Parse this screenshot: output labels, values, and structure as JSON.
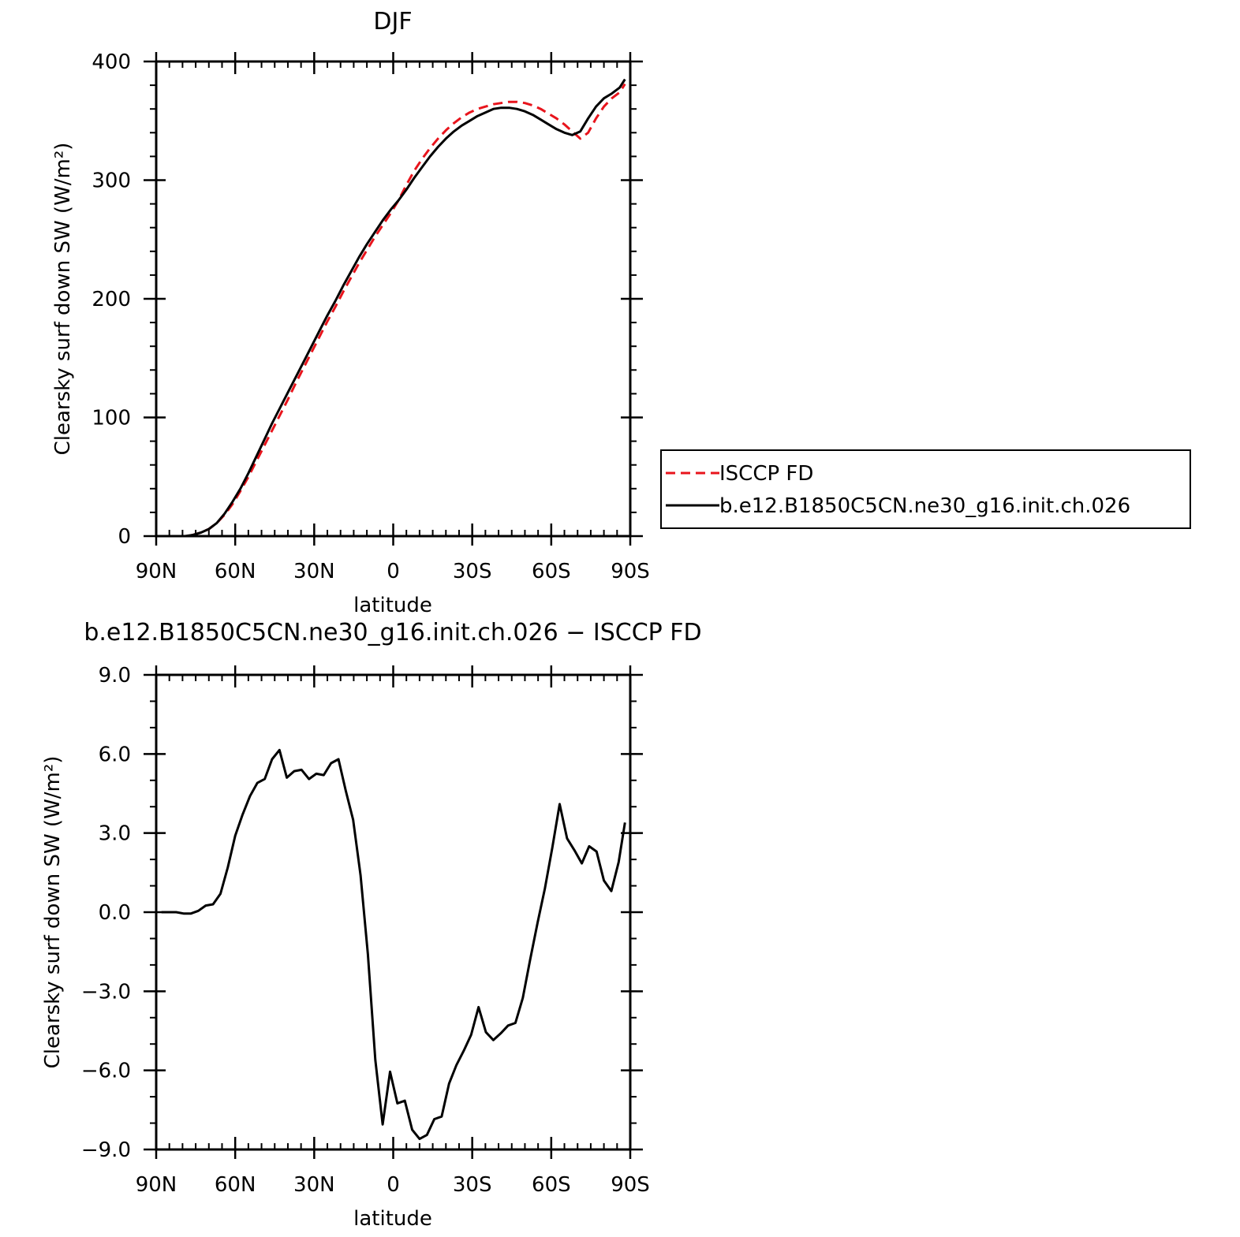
{
  "chart_data": [
    {
      "type": "line",
      "title": "DJF",
      "xlabel": "latitude",
      "ylabel": "Clearsky surf down SW (W/m²)",
      "xlim": [
        90,
        -90
      ],
      "ylim": [
        0,
        400
      ],
      "x_tick_values": [
        90,
        60,
        30,
        0,
        -30,
        -60,
        -90
      ],
      "x_tick_labels": [
        "90N",
        "60N",
        "30N",
        "0",
        "30S",
        "60S",
        "90S"
      ],
      "y_tick_values": [
        0,
        100,
        200,
        300,
        400
      ],
      "y_tick_labels": [
        "0",
        "100",
        "200",
        "300",
        "400"
      ],
      "legend_position": "right",
      "x": [
        88,
        85,
        82,
        79,
        76,
        73,
        70,
        67,
        64,
        61,
        58,
        55,
        52,
        49,
        46,
        43,
        40,
        37,
        34,
        31,
        28,
        25,
        22,
        19,
        16,
        13,
        10,
        7,
        4,
        1,
        -2,
        -5,
        -8,
        -11,
        -14,
        -17,
        -20,
        -23,
        -26,
        -29,
        -32,
        -35,
        -38,
        -41,
        -44,
        -47,
        -50,
        -53,
        -56,
        -59,
        -62,
        -65,
        -68,
        -71,
        -74,
        -77,
        -80,
        -83,
        -86,
        -88
      ],
      "series": [
        {
          "name": "ISCCP FD",
          "color": "#e8141c",
          "dash": "dashed",
          "values": [
            0,
            0,
            0,
            0,
            1,
            3,
            6,
            11,
            18,
            27,
            38,
            50,
            63,
            76,
            89,
            102,
            115,
            129,
            142,
            155,
            168,
            181,
            193,
            206,
            218,
            230,
            241,
            252,
            262,
            272,
            283,
            296,
            308,
            318,
            327,
            335,
            342,
            348,
            353,
            357,
            360,
            362,
            364,
            365,
            366,
            366,
            365,
            363,
            360,
            356,
            352,
            347,
            341,
            335,
            340,
            352,
            362,
            369,
            374,
            381
          ]
        },
        {
          "name": "b.e12.B1850C5CN.ne30_g16.init.ch.026",
          "color": "#000000",
          "dash": "solid",
          "values": [
            0,
            0,
            0,
            0,
            1,
            3,
            6,
            11,
            19,
            29,
            40,
            53,
            67,
            81,
            95,
            108,
            121,
            134,
            147,
            160,
            173,
            186,
            198,
            211,
            223,
            235,
            246,
            256,
            266,
            275,
            283,
            292,
            302,
            311,
            320,
            328,
            335,
            341,
            346,
            350,
            354,
            357,
            360,
            361,
            361,
            360,
            358,
            355,
            351,
            347,
            343,
            340,
            338,
            341,
            352,
            362,
            369,
            373,
            378,
            385
          ]
        }
      ]
    },
    {
      "type": "line",
      "title": "b.e12.B1850C5CN.ne30_g16.init.ch.026 − ISCCP FD",
      "xlabel": "latitude",
      "ylabel": "Clearsky surf down SW (W/m²)",
      "xlim": [
        90,
        -90
      ],
      "ylim": [
        -9,
        9
      ],
      "x_tick_values": [
        90,
        60,
        30,
        0,
        -30,
        -60,
        -90
      ],
      "x_tick_labels": [
        "90N",
        "60N",
        "30N",
        "0",
        "30S",
        "60S",
        "90S"
      ],
      "y_tick_values": [
        -9,
        -6,
        -3,
        0,
        3,
        6,
        9
      ],
      "y_tick_labels": [
        "−9.0",
        "−6.0",
        "−3.0",
        "0.0",
        "3.0",
        "6.0",
        "9.0"
      ],
      "x": [
        88,
        85.2,
        82.4,
        79.6,
        76.8,
        74,
        71.2,
        68.4,
        65.6,
        62.8,
        60,
        57.2,
        54.4,
        51.6,
        48.8,
        46,
        43.2,
        40.4,
        37.6,
        34.8,
        32,
        29.2,
        26.4,
        23.6,
        20.8,
        18,
        15.2,
        12.4,
        9.6,
        6.8,
        4,
        1.2,
        -1.6,
        -4.4,
        -7.2,
        -10,
        -12.8,
        -15.6,
        -18.4,
        -21.2,
        -24,
        -26.8,
        -29.6,
        -32.4,
        -35.2,
        -38,
        -40.8,
        -43.6,
        -46.4,
        -49.2,
        -52,
        -54.8,
        -57.6,
        -60.4,
        -63.2,
        -66,
        -68.8,
        -71.6,
        -74.4,
        -77.2,
        -80,
        -82.8,
        -85.6,
        -88
      ],
      "series": [
        {
          "name": "",
          "color": "#000000",
          "dash": "solid",
          "values": [
            0,
            0,
            0,
            -0.05,
            -0.05,
            0.05,
            0.25,
            0.3,
            0.7,
            1.7,
            2.9,
            3.7,
            4.4,
            4.9,
            5.05,
            5.8,
            6.15,
            5.1,
            5.35,
            5.4,
            5.05,
            5.25,
            5.2,
            5.65,
            5.8,
            4.6,
            3.5,
            1.4,
            -1.6,
            -5.6,
            -8.05,
            -6.05,
            -7.25,
            -7.15,
            -8.25,
            -8.6,
            -8.45,
            -7.85,
            -7.75,
            -6.5,
            -5.8,
            -5.25,
            -4.65,
            -3.6,
            -4.55,
            -4.85,
            -4.6,
            -4.3,
            -4.2,
            -3.25,
            -1.8,
            -0.4,
            0.9,
            2.45,
            4.1,
            2.8,
            2.35,
            1.85,
            2.5,
            2.3,
            1.2,
            0.8,
            1.9,
            3.4
          ]
        }
      ]
    }
  ]
}
